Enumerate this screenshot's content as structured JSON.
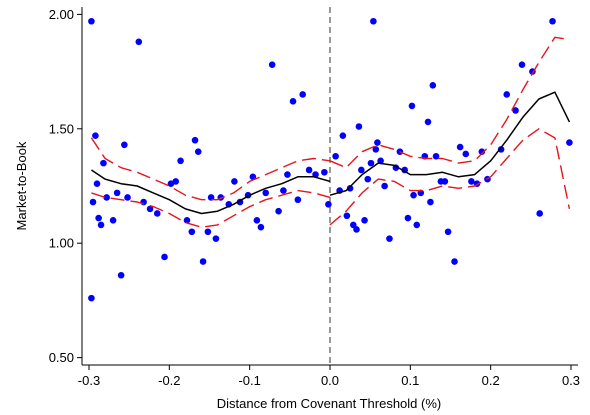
{
  "chart_data": {
    "type": "scatter",
    "xlabel": "Distance from Covenant Threshold (%)",
    "ylabel": "Market-to-Book",
    "xlim": [
      -0.3,
      0.3
    ],
    "ylim": [
      0.5,
      2.0
    ],
    "x_ticks": [
      -0.3,
      -0.2,
      -0.1,
      0.0,
      0.1,
      0.2,
      0.3
    ],
    "x_tick_labels": [
      "-0.3",
      "-0.2",
      "-0.1",
      "0.0",
      "0.1",
      "0.2",
      "0.3"
    ],
    "y_ticks": [
      0.5,
      1.0,
      1.5,
      2.0
    ],
    "y_tick_labels": [
      "0.50",
      "1.00",
      "1.50",
      "2.00"
    ],
    "threshold_line_x": 0.0,
    "grid": false,
    "colors": {
      "points": "#0000ff",
      "fit": "#000000",
      "ci": "#e8141b",
      "threshold": "#555555"
    },
    "series": [
      {
        "type": "scatter",
        "points": [
          [
            -0.297,
            1.97
          ],
          [
            -0.297,
            0.76
          ],
          [
            -0.295,
            1.18
          ],
          [
            -0.292,
            1.47
          ],
          [
            -0.29,
            1.26
          ],
          [
            -0.288,
            1.11
          ],
          [
            -0.285,
            1.08
          ],
          [
            -0.282,
            1.35
          ],
          [
            -0.278,
            1.2
          ],
          [
            -0.27,
            1.1
          ],
          [
            -0.265,
            1.22
          ],
          [
            -0.26,
            0.86
          ],
          [
            -0.256,
            1.43
          ],
          [
            -0.252,
            1.2
          ],
          [
            -0.238,
            1.88
          ],
          [
            -0.232,
            1.18
          ],
          [
            -0.224,
            1.15
          ],
          [
            -0.215,
            1.13
          ],
          [
            -0.206,
            0.94
          ],
          [
            -0.198,
            1.26
          ],
          [
            -0.192,
            1.27
          ],
          [
            -0.186,
            1.36
          ],
          [
            -0.178,
            1.1
          ],
          [
            -0.172,
            1.05
          ],
          [
            -0.168,
            1.45
          ],
          [
            -0.164,
            1.4
          ],
          [
            -0.158,
            0.92
          ],
          [
            -0.152,
            1.05
          ],
          [
            -0.148,
            1.2
          ],
          [
            -0.142,
            1.02
          ],
          [
            -0.136,
            1.2
          ],
          [
            -0.126,
            1.17
          ],
          [
            -0.119,
            1.27
          ],
          [
            -0.112,
            1.18
          ],
          [
            -0.102,
            1.21
          ],
          [
            -0.096,
            1.29
          ],
          [
            -0.091,
            1.1
          ],
          [
            -0.086,
            1.07
          ],
          [
            -0.08,
            1.22
          ],
          [
            -0.072,
            1.78
          ],
          [
            -0.064,
            1.14
          ],
          [
            -0.058,
            1.23
          ],
          [
            -0.053,
            1.3
          ],
          [
            -0.046,
            1.62
          ],
          [
            -0.04,
            1.19
          ],
          [
            -0.034,
            1.65
          ],
          [
            -0.026,
            1.32
          ],
          [
            -0.018,
            1.3
          ],
          [
            -0.007,
            1.31
          ],
          [
            -0.002,
            1.17
          ],
          [
            0.007,
            1.38
          ],
          [
            0.012,
            1.23
          ],
          [
            0.016,
            1.47
          ],
          [
            0.021,
            1.12
          ],
          [
            0.025,
            1.24
          ],
          [
            0.029,
            1.08
          ],
          [
            0.033,
            1.06
          ],
          [
            0.036,
            1.51
          ],
          [
            0.039,
            1.32
          ],
          [
            0.043,
            1.1
          ],
          [
            0.047,
            1.28
          ],
          [
            0.051,
            1.35
          ],
          [
            0.054,
            1.97
          ],
          [
            0.057,
            1.41
          ],
          [
            0.059,
            1.44
          ],
          [
            0.063,
            1.36
          ],
          [
            0.068,
            1.25
          ],
          [
            0.074,
            1.02
          ],
          [
            0.082,
            1.33
          ],
          [
            0.087,
            1.4
          ],
          [
            0.093,
            1.32
          ],
          [
            0.097,
            1.11
          ],
          [
            0.102,
            1.6
          ],
          [
            0.104,
            1.21
          ],
          [
            0.108,
            1.08
          ],
          [
            0.113,
            1.22
          ],
          [
            0.118,
            1.38
          ],
          [
            0.122,
            1.53
          ],
          [
            0.125,
            1.18
          ],
          [
            0.128,
            1.69
          ],
          [
            0.132,
            1.38
          ],
          [
            0.138,
            1.27
          ],
          [
            0.143,
            1.27
          ],
          [
            0.147,
            1.05
          ],
          [
            0.155,
            0.92
          ],
          [
            0.162,
            1.42
          ],
          [
            0.169,
            1.39
          ],
          [
            0.176,
            1.27
          ],
          [
            0.183,
            1.26
          ],
          [
            0.189,
            1.4
          ],
          [
            0.196,
            1.28
          ],
          [
            0.213,
            1.41
          ],
          [
            0.22,
            1.65
          ],
          [
            0.231,
            1.58
          ],
          [
            0.239,
            1.78
          ],
          [
            0.252,
            1.75
          ],
          [
            0.261,
            1.13
          ],
          [
            0.277,
            1.97
          ],
          [
            0.298,
            1.44
          ]
        ]
      },
      {
        "type": "line",
        "style": "solid",
        "role": "fit-left",
        "x": [
          -0.297,
          -0.28,
          -0.26,
          -0.24,
          -0.22,
          -0.2,
          -0.18,
          -0.16,
          -0.14,
          -0.12,
          -0.1,
          -0.08,
          -0.06,
          -0.04,
          -0.02,
          0.0
        ],
        "y": [
          1.32,
          1.28,
          1.26,
          1.25,
          1.22,
          1.19,
          1.15,
          1.13,
          1.14,
          1.17,
          1.21,
          1.24,
          1.26,
          1.29,
          1.29,
          1.27
        ]
      },
      {
        "type": "line",
        "style": "dashed",
        "role": "ci-upper-left",
        "x": [
          -0.297,
          -0.28,
          -0.26,
          -0.24,
          -0.22,
          -0.2,
          -0.18,
          -0.16,
          -0.14,
          -0.12,
          -0.1,
          -0.08,
          -0.06,
          -0.04,
          -0.02,
          0.0
        ],
        "y": [
          1.46,
          1.37,
          1.33,
          1.31,
          1.28,
          1.25,
          1.21,
          1.19,
          1.19,
          1.22,
          1.27,
          1.3,
          1.33,
          1.36,
          1.37,
          1.36
        ]
      },
      {
        "type": "line",
        "style": "dashed",
        "role": "ci-lower-left",
        "x": [
          -0.297,
          -0.28,
          -0.26,
          -0.24,
          -0.22,
          -0.2,
          -0.18,
          -0.16,
          -0.14,
          -0.12,
          -0.1,
          -0.08,
          -0.06,
          -0.04,
          -0.02,
          0.0
        ],
        "y": [
          1.22,
          1.2,
          1.19,
          1.18,
          1.16,
          1.13,
          1.09,
          1.07,
          1.08,
          1.12,
          1.16,
          1.19,
          1.21,
          1.23,
          1.22,
          1.2
        ]
      },
      {
        "type": "line",
        "style": "solid",
        "role": "fit-right",
        "x": [
          0.0,
          0.02,
          0.04,
          0.06,
          0.08,
          0.1,
          0.12,
          0.14,
          0.16,
          0.18,
          0.2,
          0.22,
          0.24,
          0.26,
          0.28,
          0.298
        ],
        "y": [
          1.21,
          1.23,
          1.3,
          1.35,
          1.34,
          1.3,
          1.3,
          1.31,
          1.29,
          1.3,
          1.36,
          1.45,
          1.55,
          1.63,
          1.66,
          1.53
        ]
      },
      {
        "type": "line",
        "style": "dashed",
        "role": "ci-upper-right",
        "x": [
          0.0,
          0.02,
          0.04,
          0.06,
          0.08,
          0.1,
          0.12,
          0.14,
          0.16,
          0.18,
          0.2,
          0.22,
          0.24,
          0.26,
          0.28,
          0.298
        ],
        "y": [
          1.36,
          1.33,
          1.4,
          1.43,
          1.41,
          1.38,
          1.37,
          1.37,
          1.35,
          1.36,
          1.43,
          1.54,
          1.67,
          1.79,
          1.9,
          1.89
        ]
      },
      {
        "type": "line",
        "style": "dashed",
        "role": "ci-lower-right",
        "x": [
          0.0,
          0.02,
          0.04,
          0.06,
          0.08,
          0.1,
          0.12,
          0.14,
          0.16,
          0.18,
          0.2,
          0.22,
          0.24,
          0.26,
          0.28,
          0.298
        ],
        "y": [
          1.08,
          1.14,
          1.22,
          1.28,
          1.27,
          1.23,
          1.23,
          1.25,
          1.24,
          1.25,
          1.29,
          1.37,
          1.45,
          1.5,
          1.46,
          1.15
        ]
      }
    ]
  }
}
